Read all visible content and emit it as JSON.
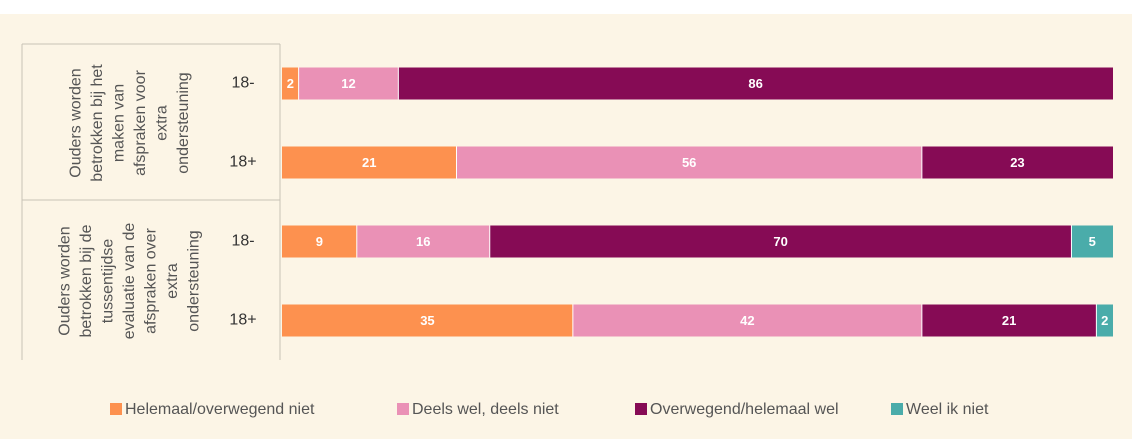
{
  "chart_data": {
    "type": "stacked-bar-horizontal",
    "groups": [
      {
        "label": [
          "Ouders worden",
          "betrokken bij het",
          "maken van",
          "afspraken voor",
          "extra",
          "ondersteuning"
        ],
        "categories": [
          "18-",
          "18+"
        ]
      },
      {
        "label": [
          "Ouders worden",
          "betrokken bij de",
          "tussentijdse",
          "evaluatie van de",
          "afspraken over",
          "extra",
          "ondersteuning"
        ],
        "categories": [
          "18-",
          "18+"
        ]
      }
    ],
    "series": [
      {
        "name": "Helemaal/overwegend niet",
        "color": "#fd914f",
        "values": [
          2,
          21,
          9,
          35
        ]
      },
      {
        "name": "Deels wel, deels niet",
        "color": "#ea91b6",
        "values": [
          12,
          56,
          16,
          42
        ]
      },
      {
        "name": "Overwegend/helemaal wel",
        "color": "#860b55",
        "values": [
          86,
          23,
          70,
          21
        ]
      },
      {
        "name": "Weel ik niet",
        "color": "#4aacaa",
        "values": [
          null,
          null,
          5,
          2
        ]
      }
    ],
    "legend": "bottom"
  }
}
